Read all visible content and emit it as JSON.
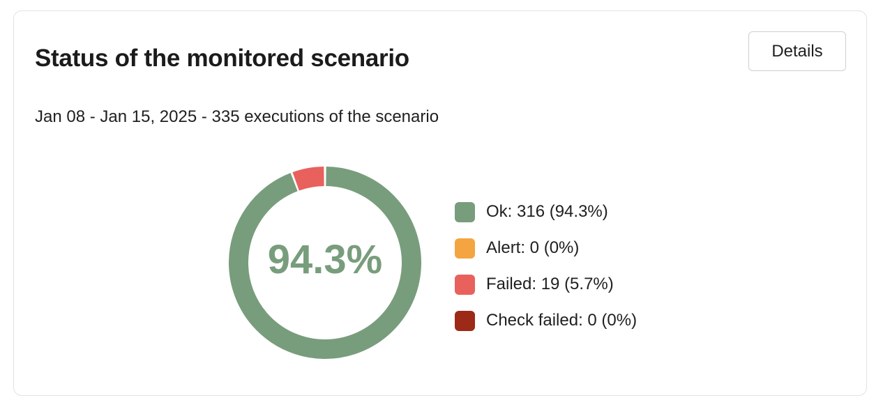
{
  "card": {
    "title": "Status of the monitored scenario",
    "details_label": "Details",
    "date_range": "Jan 08 - Jan 15, 2025",
    "executions_text": "335 executions of the scenario",
    "subtitle_separator": " - "
  },
  "chart_data": {
    "type": "pie",
    "variant": "donut",
    "center_label": "94.3%",
    "total": 335,
    "series": [
      {
        "name": "Ok",
        "value": 316,
        "percent": "94.3%",
        "label": "Ok: 316 (94.3%)",
        "color": "#789d7c"
      },
      {
        "name": "Alert",
        "value": 0,
        "percent": "0%",
        "label": "Alert: 0 (0%)",
        "color": "#f4a541"
      },
      {
        "name": "Failed",
        "value": 19,
        "percent": "5.7%",
        "label": "Failed: 19 (5.7%)",
        "color": "#e8615d"
      },
      {
        "name": "Check failed",
        "value": 0,
        "percent": "0%",
        "label": "Check failed: 0 (0%)",
        "color": "#9c2a17"
      }
    ],
    "legend_position": "right"
  }
}
